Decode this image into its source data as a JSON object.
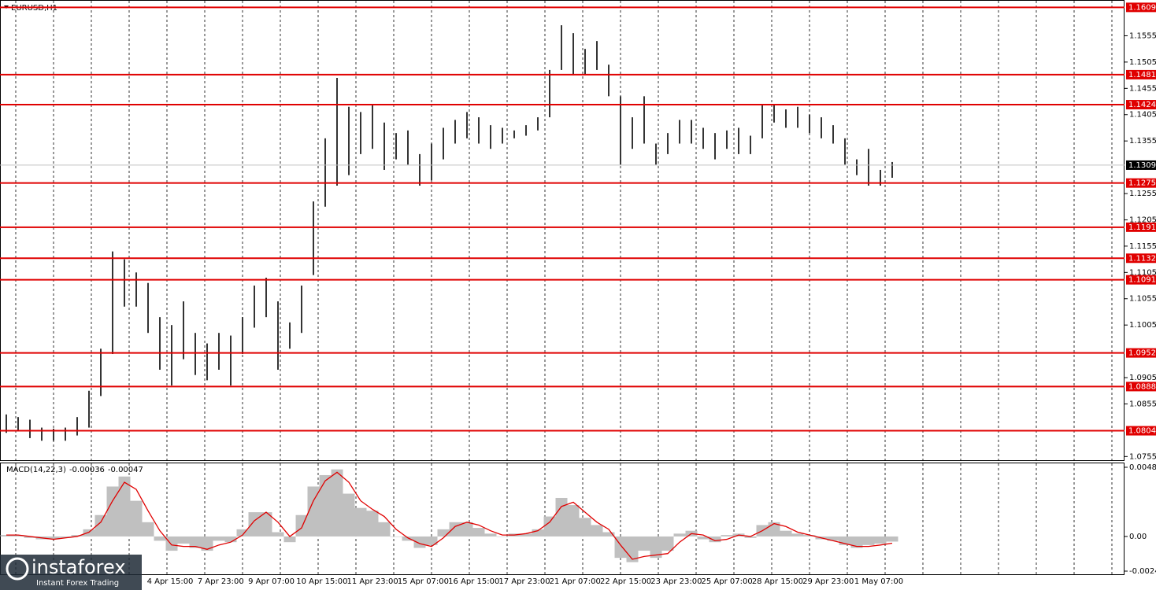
{
  "chart_data": [
    {
      "type": "ohlc",
      "title": "EURUSD,H1",
      "high": [
        1.0835,
        1.083,
        1.0825,
        1.081,
        1.0808,
        1.081,
        1.083,
        1.088,
        1.096,
        1.1145,
        1.113,
        1.1105,
        1.1085,
        1.102,
        1.1005,
        1.105,
        1.099,
        1.097,
        1.099,
        1.0985,
        1.102,
        1.108,
        1.1095,
        1.105,
        1.101,
        1.108,
        1.124,
        1.136,
        1.1475,
        1.142,
        1.141,
        1.1425,
        1.139,
        1.137,
        1.1375,
        1.133,
        1.135,
        1.138,
        1.1395,
        1.141,
        1.14,
        1.1385,
        1.138,
        1.1375,
        1.1385,
        1.14,
        1.149,
        1.1575,
        1.156,
        1.153,
        1.1545,
        1.15,
        1.144,
        1.14,
        1.144,
        1.135,
        1.137,
        1.1395,
        1.1395,
        1.138,
        1.137,
        1.1375,
        1.138,
        1.1365,
        1.1425,
        1.1425,
        1.1415,
        1.142,
        1.1405,
        1.14,
        1.1385,
        1.136,
        1.132,
        1.134,
        1.13,
        1.1315
      ],
      "low": [
        1.08,
        1.0805,
        1.079,
        1.0785,
        1.0785,
        1.0785,
        1.0795,
        1.081,
        1.087,
        1.095,
        1.104,
        1.104,
        1.099,
        1.092,
        1.089,
        1.094,
        1.091,
        1.09,
        1.092,
        1.089,
        1.095,
        1.1,
        1.102,
        1.092,
        1.096,
        1.099,
        1.11,
        1.123,
        1.127,
        1.129,
        1.133,
        1.134,
        1.13,
        1.132,
        1.131,
        1.127,
        1.128,
        1.132,
        1.135,
        1.136,
        1.135,
        1.134,
        1.135,
        1.136,
        1.1365,
        1.1375,
        1.14,
        1.149,
        1.148,
        1.148,
        1.149,
        1.144,
        1.131,
        1.134,
        1.135,
        1.131,
        1.133,
        1.135,
        1.135,
        1.134,
        1.132,
        1.134,
        1.133,
        1.133,
        1.136,
        1.139,
        1.138,
        1.138,
        1.137,
        1.136,
        1.135,
        1.131,
        1.129,
        1.127,
        1.127,
        1.1285
      ],
      "color": "#000000",
      "levels": [
        1.1609,
        1.1481,
        1.1424,
        1.1275,
        1.1191,
        1.1132,
        1.1091,
        1.0952,
        1.0888,
        1.0804
      ],
      "level_color": "#e00000",
      "last": 1.1309,
      "ylim": [
        1.0748,
        1.1623
      ],
      "yticks": [
        1.0755,
        1.0855,
        1.0905,
        1.1005,
        1.1055,
        1.1105,
        1.1155,
        1.1205,
        1.1255,
        1.1355,
        1.1405,
        1.1455,
        1.1505,
        1.1555
      ],
      "xlabels": [
        "4 Apr 15:00",
        "7 Apr 23:00",
        "9 Apr 07:00",
        "10 Apr 15:00",
        "11 Apr 23:00",
        "15 Apr 07:00",
        "16 Apr 15:00",
        "17 Apr 23:00",
        "21 Apr 07:00",
        "22 Apr 15:00",
        "23 Apr 23:00",
        "25 Apr 07:00",
        "28 Apr 15:00",
        "29 Apr 23:00",
        "1 May 07:00"
      ],
      "grid": true
    },
    {
      "type": "macd",
      "title": "MACD(14,22,3)",
      "series": [
        {
          "color": "#c0c0c0",
          "values": [
            0.0001,
            0.0001,
            -0.0001,
            -0.0002,
            -0.0002,
            -0.0001,
            0.0001,
            0.0005,
            0.0015,
            0.0035,
            0.0042,
            0.0025,
            0.001,
            -0.0003,
            -0.001,
            -0.0005,
            -0.0008,
            -0.001,
            -0.0003,
            -0.0004,
            0.0005,
            0.0017,
            0.0017,
            0.0003,
            -0.0004,
            0.0015,
            0.0035,
            0.0043,
            0.0047,
            0.003,
            0.002,
            0.0018,
            0.001,
            0.0,
            -0.0003,
            -0.0008,
            -0.0006,
            0.0005,
            0.001,
            0.001,
            0.0006,
            0.0002,
            0.0,
            0.0002,
            0.0002,
            0.0005,
            0.0014,
            0.0027,
            0.0022,
            0.0013,
            0.0008,
            0.0003,
            -0.0015,
            -0.0018,
            -0.001,
            -0.0015,
            -0.001,
            0.0002,
            0.0004,
            -0.0002,
            -0.0004,
            0.0001,
            0.0002,
            -0.0001,
            0.0008,
            0.001,
            0.0004,
            0.0002,
            0.0001,
            -0.0002,
            -0.0003,
            -0.0006,
            -0.0008,
            -0.0006,
            -0.0005,
            -0.00036
          ]
        },
        {
          "color": "#e00000",
          "values": [
            0.0001,
            0.0001,
            0.0,
            -0.0001,
            -0.0002,
            -0.0001,
            0.0,
            0.0003,
            0.001,
            0.0025,
            0.0038,
            0.0033,
            0.0018,
            0.0004,
            -0.0006,
            -0.0007,
            -0.0007,
            -0.0009,
            -0.0006,
            -0.0004,
            0.0001,
            0.0011,
            0.0017,
            0.001,
            0.0,
            0.0006,
            0.0025,
            0.0039,
            0.0045,
            0.0038,
            0.0025,
            0.0019,
            0.0014,
            0.0005,
            -0.0001,
            -0.0005,
            -0.0007,
            -0.0001,
            0.0007,
            0.001,
            0.0008,
            0.0004,
            0.0001,
            0.0001,
            0.0002,
            0.0004,
            0.001,
            0.0021,
            0.0024,
            0.0017,
            0.001,
            0.0005,
            -0.0006,
            -0.0016,
            -0.0014,
            -0.0013,
            -0.0012,
            -0.0004,
            0.0002,
            0.0001,
            -0.0003,
            -0.0002,
            0.0001,
            0.0,
            0.0004,
            0.0009,
            0.0007,
            0.0003,
            0.0001,
            -0.0001,
            -0.0003,
            -0.0005,
            -0.0007,
            -0.0007,
            -0.0006,
            -0.00047
          ]
        }
      ],
      "ylim": [
        -0.00265,
        0.00518
      ],
      "yticks": [
        0.00485,
        {
          "value": 0,
          "label": "0.00"
        },
        -0.00243
      ]
    }
  ],
  "branding": {
    "name": "instaforex",
    "tagline": "Instant Forex Trading"
  }
}
